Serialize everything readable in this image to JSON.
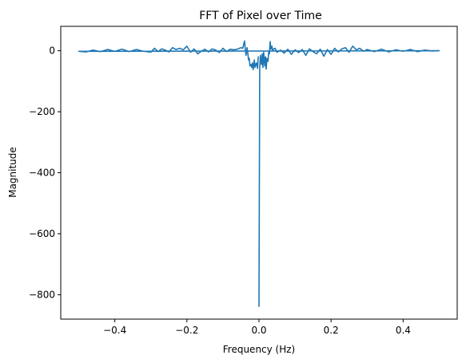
{
  "chart_data": {
    "type": "line",
    "title": "FFT of Pixel over Time",
    "xlabel": "Frequency (Hz)",
    "ylabel": "Magnitude",
    "xlim": [
      -0.55,
      0.55
    ],
    "ylim": [
      -880,
      80
    ],
    "xticks": [
      -0.4,
      -0.2,
      0.0,
      0.2,
      0.4
    ],
    "xtick_labels": [
      "−0.4",
      "−0.2",
      "0.0",
      "0.2",
      "0.4"
    ],
    "yticks": [
      0,
      -200,
      -400,
      -600,
      -800
    ],
    "ytick_labels": [
      "0",
      "−200",
      "−400",
      "−600",
      "−800"
    ],
    "grid": false,
    "series": [
      {
        "color": "#1f77b4",
        "x": [
          0.0,
          0.002,
          0.004,
          0.007,
          0.009,
          0.011,
          0.013,
          0.016,
          0.018,
          0.02,
          0.022,
          0.025,
          0.027,
          0.029,
          0.031,
          0.033,
          0.036,
          0.038,
          0.04,
          0.045,
          0.05,
          0.06,
          0.07,
          0.08,
          0.09,
          0.1,
          0.11,
          0.12,
          0.13,
          0.14,
          0.15,
          0.16,
          0.17,
          0.18,
          0.19,
          0.2,
          0.21,
          0.22,
          0.23,
          0.24,
          0.25,
          0.26,
          0.27,
          0.28,
          0.29,
          0.3,
          0.32,
          0.34,
          0.36,
          0.38,
          0.4,
          0.42,
          0.44,
          0.46,
          0.48,
          0.5,
          -0.5,
          -0.48,
          -0.46,
          -0.44,
          -0.42,
          -0.4,
          -0.38,
          -0.36,
          -0.34,
          -0.32,
          -0.3,
          -0.29,
          -0.28,
          -0.27,
          -0.26,
          -0.25,
          -0.24,
          -0.23,
          -0.22,
          -0.21,
          -0.2,
          -0.19,
          -0.18,
          -0.17,
          -0.16,
          -0.15,
          -0.14,
          -0.13,
          -0.12,
          -0.11,
          -0.1,
          -0.09,
          -0.08,
          -0.07,
          -0.06,
          -0.05,
          -0.045,
          -0.04,
          -0.038,
          -0.036,
          -0.033,
          -0.031,
          -0.029,
          -0.027,
          -0.025,
          -0.022,
          -0.02,
          -0.018,
          -0.016,
          -0.013,
          -0.011,
          -0.009,
          -0.007,
          -0.004,
          -0.002
        ],
        "y": [
          -838,
          -60,
          -15,
          -45,
          -10,
          -55,
          -5,
          -50,
          -20,
          -60,
          -25,
          -35,
          -5,
          -10,
          30,
          5,
          15,
          0,
          5,
          8,
          -5,
          2,
          -8,
          5,
          -12,
          3,
          -6,
          4,
          -15,
          6,
          -3,
          -10,
          5,
          -18,
          4,
          -12,
          8,
          -4,
          6,
          10,
          -5,
          15,
          3,
          8,
          -2,
          4,
          -3,
          5,
          -4,
          3,
          -2,
          4,
          -3,
          2,
          -1,
          0,
          -2,
          -4,
          2,
          -3,
          4,
          -2,
          5,
          -3,
          4,
          -2,
          -5,
          8,
          -3,
          6,
          2,
          -4,
          10,
          4,
          8,
          3,
          15,
          -5,
          6,
          -10,
          -2,
          5,
          -4,
          6,
          2,
          -6,
          8,
          -3,
          5,
          3,
          5,
          10,
          8,
          32,
          5,
          -15,
          10,
          -8,
          -30,
          -25,
          -50,
          -45,
          -55,
          -40,
          -62,
          -30,
          -55,
          -45,
          -40,
          -58,
          -20
        ]
      }
    ]
  }
}
